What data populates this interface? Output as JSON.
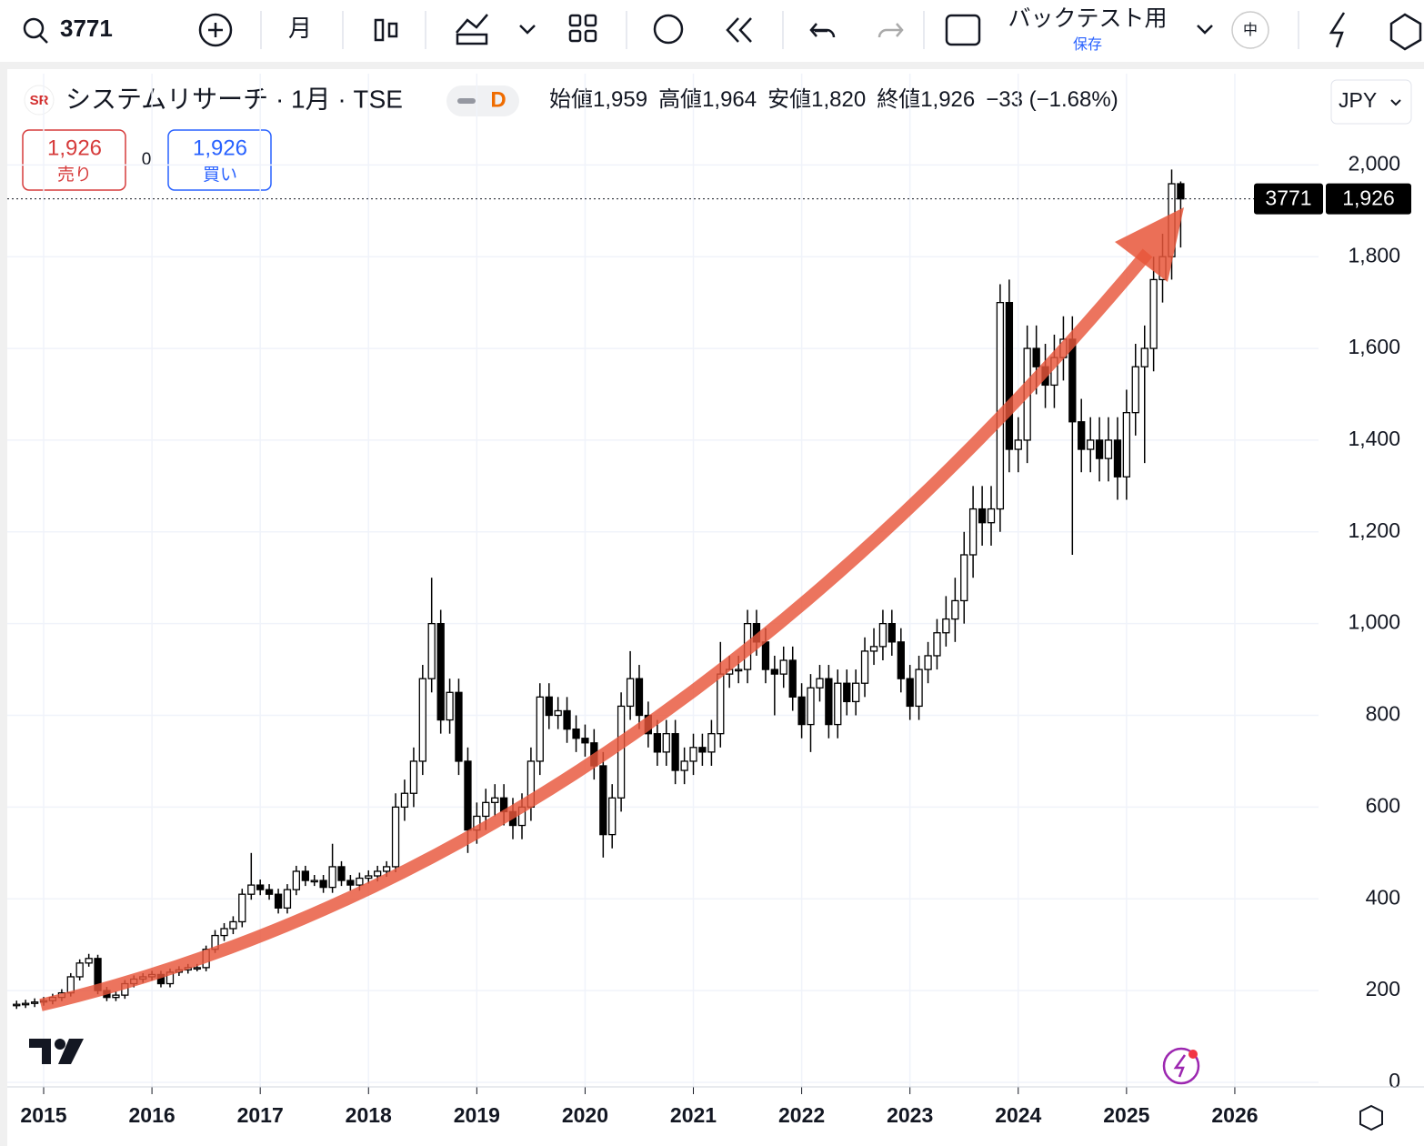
{
  "toolbar": {
    "symbol": "3771",
    "interval": "月",
    "backtest": "バックテスト用",
    "save": "保存",
    "size": "中"
  },
  "legend": {
    "name": "システムリサーチ · 1月 · TSE",
    "badge": "D",
    "open_label": "始値",
    "open": "1,959",
    "high_label": "高値",
    "high": "1,964",
    "low_label": "安値",
    "low": "1,820",
    "close_label": "終値",
    "close": "1,926",
    "change": "−33 (−1.68%)",
    "currency": "JPY"
  },
  "trade": {
    "sell_price": "1,926",
    "sell": "売り",
    "spread": "0",
    "buy_price": "1,926",
    "buy": "買い"
  },
  "price_tag": {
    "symbol": "3771",
    "price": "1,926"
  },
  "chart_data": {
    "type": "candlestick",
    "up_color": "#ffffff",
    "down_color": "#000000",
    "grid": true,
    "xlim": [
      2014.664,
      2026.773
    ],
    "ylim": [
      -10,
      2080
    ],
    "xticks": [
      2015,
      2016,
      2017,
      2018,
      2019,
      2020,
      2021,
      2022,
      2023,
      2024,
      2025,
      2026
    ],
    "yticks": [
      0,
      200,
      400,
      600,
      800,
      {
        "value": 1000,
        "label": "1,000"
      },
      {
        "value": 1200,
        "label": "1,200"
      },
      {
        "value": 1400,
        "label": "1,400"
      },
      {
        "value": 1600,
        "label": "1,600"
      },
      {
        "value": 1800,
        "label": "1,800"
      },
      {
        "value": 2000,
        "label": "2,000"
      }
    ],
    "x": [
      2014.75,
      2014.833,
      2014.917,
      2015,
      2015.083,
      2015.167,
      2015.25,
      2015.333,
      2015.417,
      2015.5,
      2015.583,
      2015.667,
      2015.75,
      2015.833,
      2015.917,
      2016,
      2016.083,
      2016.167,
      2016.25,
      2016.333,
      2016.417,
      2016.5,
      2016.583,
      2016.667,
      2016.75,
      2016.833,
      2016.917,
      2017,
      2017.083,
      2017.167,
      2017.25,
      2017.333,
      2017.417,
      2017.5,
      2017.583,
      2017.667,
      2017.75,
      2017.833,
      2017.917,
      2018,
      2018.083,
      2018.167,
      2018.25,
      2018.333,
      2018.417,
      2018.5,
      2018.583,
      2018.667,
      2018.75,
      2018.833,
      2018.917,
      2019,
      2019.083,
      2019.167,
      2019.25,
      2019.333,
      2019.417,
      2019.5,
      2019.583,
      2019.667,
      2019.75,
      2019.833,
      2019.917,
      2020,
      2020.083,
      2020.167,
      2020.25,
      2020.333,
      2020.417,
      2020.5,
      2020.583,
      2020.667,
      2020.75,
      2020.833,
      2020.917,
      2021,
      2021.083,
      2021.167,
      2021.25,
      2021.333,
      2021.417,
      2021.5,
      2021.583,
      2021.667,
      2021.75,
      2021.833,
      2021.917,
      2022,
      2022.083,
      2022.167,
      2022.25,
      2022.333,
      2022.417,
      2022.5,
      2022.583,
      2022.667,
      2022.75,
      2022.833,
      2022.917,
      2023,
      2023.083,
      2023.167,
      2023.25,
      2023.333,
      2023.417,
      2023.5,
      2023.583,
      2023.667,
      2023.75,
      2023.833,
      2023.917,
      2024,
      2024.083,
      2024.167,
      2024.25,
      2024.333,
      2024.417,
      2024.5,
      2024.583,
      2024.667,
      2024.75,
      2024.833,
      2024.917,
      2025,
      2025.083,
      2025.167,
      2025.25,
      2025.333,
      2025.417,
      2025.5
    ],
    "open": [
      168,
      170,
      172,
      175,
      178,
      185,
      195,
      230,
      260,
      270,
      200,
      185,
      190,
      215,
      225,
      230,
      235,
      215,
      240,
      245,
      250,
      250,
      290,
      320,
      335,
      350,
      410,
      430,
      420,
      410,
      380,
      420,
      460,
      440,
      440,
      425,
      470,
      440,
      430,
      445,
      450,
      460,
      470,
      600,
      630,
      700,
      880,
      1000,
      790,
      850,
      700,
      550,
      580,
      610,
      620,
      590,
      560,
      600,
      700,
      840,
      800,
      810,
      770,
      750,
      740,
      690,
      540,
      620,
      820,
      880,
      800,
      760,
      720,
      760,
      680,
      700,
      730,
      720,
      760,
      890,
      900,
      900,
      1000,
      960,
      900,
      890,
      920,
      840,
      780,
      860,
      880,
      780,
      870,
      830,
      870,
      940,
      950,
      1000,
      960,
      880,
      820,
      900,
      930,
      980,
      1010,
      1050,
      1150,
      1250,
      1220,
      1250,
      1700,
      1380,
      1400,
      1600,
      1560,
      1520,
      1580,
      1620,
      1440,
      1380,
      1400,
      1360,
      1400,
      1320,
      1460,
      1560,
      1600,
      1750,
      1800,
      1959
    ],
    "high": [
      178,
      180,
      183,
      186,
      193,
      203,
      238,
      268,
      280,
      278,
      208,
      198,
      223,
      233,
      238,
      243,
      243,
      248,
      253,
      258,
      258,
      298,
      332,
      347,
      362,
      422,
      500,
      442,
      432,
      422,
      432,
      472,
      472,
      452,
      452,
      520,
      482,
      452,
      457,
      462,
      472,
      482,
      630,
      660,
      730,
      910,
      1100,
      1030,
      880,
      880,
      730,
      610,
      640,
      650,
      650,
      620,
      630,
      730,
      870,
      870,
      840,
      840,
      800,
      780,
      770,
      720,
      650,
      850,
      940,
      910,
      830,
      790,
      790,
      790,
      730,
      760,
      760,
      790,
      960,
      930,
      930,
      1030,
      1030,
      990,
      930,
      950,
      950,
      870,
      890,
      910,
      910,
      900,
      900,
      900,
      970,
      990,
      1030,
      1030,
      990,
      910,
      930,
      960,
      1010,
      1060,
      1100,
      1200,
      1300,
      1300,
      1300,
      1740,
      1750,
      1450,
      1650,
      1650,
      1610,
      1630,
      1670,
      1670,
      1490,
      1450,
      1450,
      1450,
      1450,
      1510,
      1610,
      1650,
      1800,
      1850,
      1990,
      1964
    ],
    "low": [
      160,
      162,
      164,
      167,
      170,
      177,
      187,
      222,
      252,
      192,
      177,
      177,
      182,
      207,
      217,
      222,
      207,
      207,
      232,
      237,
      242,
      242,
      282,
      308,
      323,
      338,
      398,
      408,
      398,
      368,
      368,
      408,
      428,
      428,
      413,
      413,
      428,
      418,
      418,
      433,
      438,
      448,
      458,
      570,
      600,
      670,
      850,
      760,
      760,
      670,
      500,
      520,
      550,
      580,
      560,
      530,
      530,
      570,
      670,
      770,
      770,
      740,
      720,
      710,
      660,
      490,
      510,
      590,
      790,
      770,
      730,
      690,
      690,
      650,
      650,
      670,
      690,
      690,
      730,
      860,
      870,
      870,
      930,
      870,
      800,
      860,
      810,
      750,
      720,
      830,
      750,
      750,
      800,
      800,
      840,
      910,
      920,
      930,
      850,
      790,
      790,
      870,
      900,
      950,
      960,
      1000,
      1100,
      1170,
      1170,
      1200,
      1330,
      1330,
      1350,
      1500,
      1470,
      1470,
      1530,
      1150,
      1330,
      1330,
      1310,
      1310,
      1270,
      1270,
      1410,
      1350,
      1550,
      1700,
      1750,
      1820
    ],
    "close": [
      170,
      172,
      175,
      178,
      185,
      195,
      230,
      260,
      270,
      200,
      185,
      190,
      215,
      225,
      230,
      235,
      215,
      240,
      245,
      250,
      250,
      290,
      320,
      335,
      350,
      410,
      430,
      420,
      410,
      380,
      420,
      460,
      440,
      440,
      425,
      470,
      440,
      430,
      445,
      450,
      460,
      470,
      600,
      630,
      700,
      880,
      1000,
      790,
      850,
      700,
      550,
      580,
      610,
      620,
      590,
      560,
      600,
      700,
      840,
      800,
      810,
      770,
      750,
      740,
      690,
      540,
      620,
      820,
      880,
      800,
      760,
      720,
      760,
      680,
      700,
      730,
      720,
      760,
      890,
      900,
      900,
      1000,
      960,
      900,
      890,
      920,
      840,
      780,
      860,
      880,
      780,
      870,
      830,
      870,
      940,
      950,
      1000,
      960,
      880,
      820,
      900,
      930,
      980,
      1010,
      1050,
      1150,
      1250,
      1220,
      1250,
      1700,
      1380,
      1400,
      1600,
      1560,
      1520,
      1580,
      1620,
      1440,
      1380,
      1400,
      1360,
      1400,
      1320,
      1460,
      1560,
      1600,
      1750,
      1800,
      1959,
      1926
    ]
  }
}
